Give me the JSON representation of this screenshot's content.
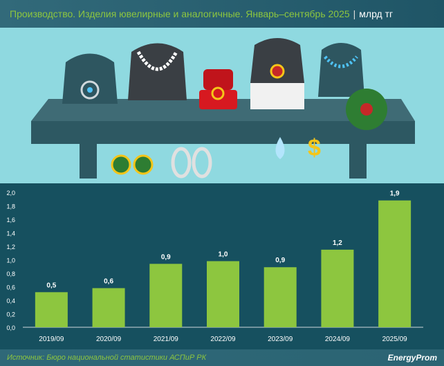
{
  "header": {
    "title": "Производство. Изделия ювелирные и аналогичные. Январь–сентябрь 2025",
    "separator": "|",
    "unit": "млрд тг"
  },
  "footer": {
    "source": "Источник: Бюро национальной статистики АСПиР РК",
    "logo": "EnergyProm"
  },
  "colors": {
    "bar": "#8dc63f",
    "background": "#16505f",
    "accent": "#8dc63f"
  },
  "chart_data": {
    "type": "bar",
    "title": "Производство. Изделия ювелирные и аналогичные. Январь–сентябрь 2025",
    "ylabel": "млрд тг",
    "xlabel": "",
    "categories": [
      "2019/09",
      "2020/09",
      "2021/09",
      "2022/09",
      "2023/09",
      "2024/09",
      "2025/09"
    ],
    "values": [
      0.52,
      0.58,
      0.94,
      0.98,
      0.89,
      1.15,
      1.88
    ],
    "data_labels": [
      "0,5",
      "0,6",
      "0,9",
      "1,0",
      "0,9",
      "1,2",
      "1,9"
    ],
    "ylim": [
      0,
      2.0
    ],
    "yticks": [
      "0,0",
      "0,2",
      "0,4",
      "0,6",
      "0,8",
      "1,0",
      "1,2",
      "1,4",
      "1,6",
      "1,8",
      "2,0"
    ],
    "grid": false
  }
}
